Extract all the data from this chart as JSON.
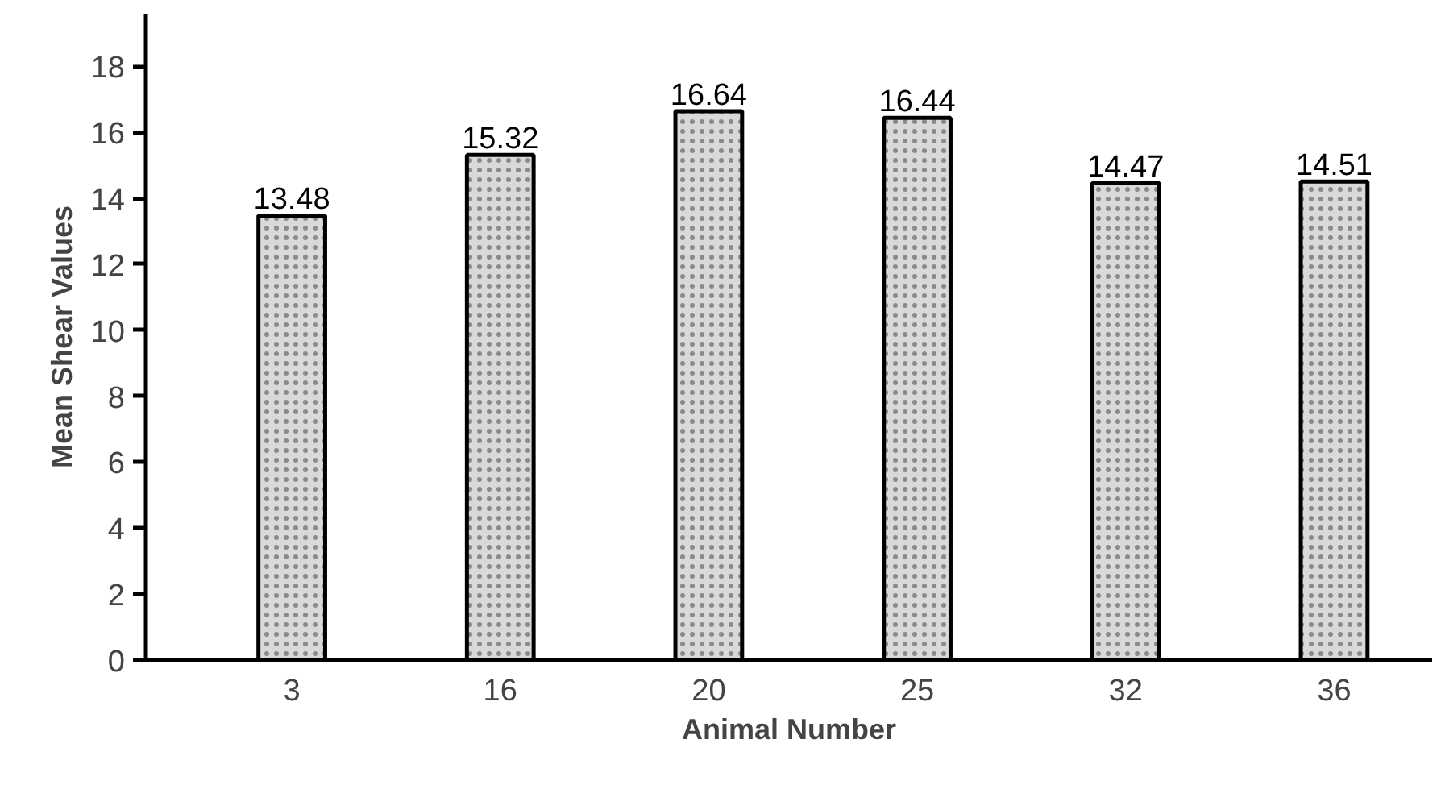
{
  "chart_data": {
    "type": "bar",
    "xlabel": "Animal Number",
    "ylabel": "Mean Shear Values",
    "categories": [
      "3",
      "16",
      "20",
      "25",
      "32",
      "36"
    ],
    "values": [
      13.48,
      15.32,
      16.64,
      16.44,
      14.47,
      14.51
    ],
    "color": "#d9d9d9",
    "ylim": [
      0,
      19.6
    ],
    "yticks": [
      0,
      2,
      4,
      6,
      8,
      10,
      12,
      14,
      16,
      18
    ],
    "data_labels": true,
    "grid": false
  }
}
